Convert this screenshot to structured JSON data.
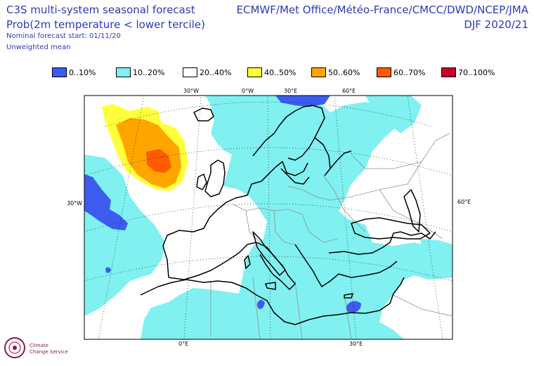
{
  "header": {
    "title_line1": "C3S multi-system seasonal forecast",
    "title_line2": "Prob(2m temperature < lower tercile)",
    "title_line3": "Nominal forecast start: 01/11/20",
    "title_line4": "Unweighted mean",
    "right_line1": "ECMWF/Met Office/Météo-France/CMCC/DWD/NCEP/JMA",
    "right_line2": "DJF 2020/21"
  },
  "legend": [
    {
      "label": "0..10%",
      "color": "#3c5cf0"
    },
    {
      "label": "10..20%",
      "color": "#80f0f0"
    },
    {
      "label": "20..40%",
      "color": "#ffffff"
    },
    {
      "label": "40..50%",
      "color": "#ffff3c"
    },
    {
      "label": "50..60%",
      "color": "#ffa500"
    },
    {
      "label": "60..70%",
      "color": "#ff5a00"
    },
    {
      "label": "70..100%",
      "color": "#c8002d"
    }
  ],
  "map": {
    "top_labels": [
      "30°W",
      "0°W",
      "30°E",
      "60°E"
    ],
    "left_labels": [
      "30°W"
    ],
    "right_labels": [
      "60°E"
    ],
    "bottom_labels": [
      "0°E",
      "30°E"
    ]
  },
  "logo": {
    "line1": "Climate",
    "line2": "Change Service"
  }
}
